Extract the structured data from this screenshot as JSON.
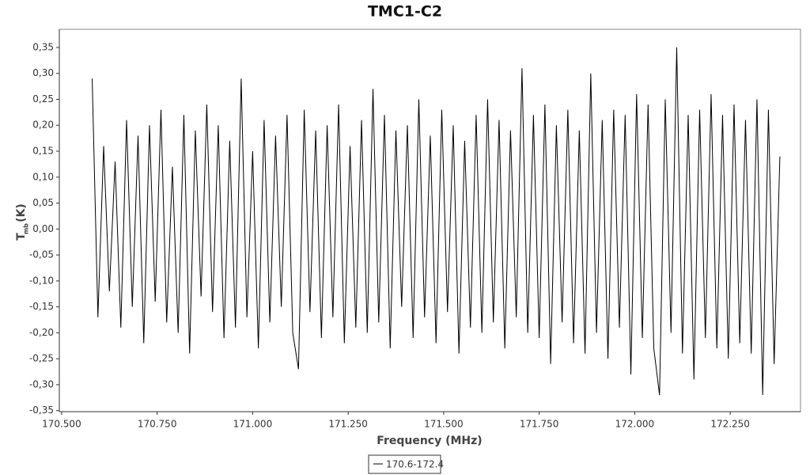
{
  "chart_data": {
    "type": "line",
    "title": "TMC1-C2",
    "xlabel": "Frequency (MHz)",
    "ylabel": {
      "main": "T",
      "sub": "mb",
      "unit": "(K)"
    },
    "x": [
      170.58,
      170.595,
      170.61,
      170.625,
      170.64,
      170.655,
      170.67,
      170.685,
      170.7,
      170.715,
      170.73,
      170.745,
      170.76,
      170.775,
      170.79,
      170.805,
      170.82,
      170.835,
      170.85,
      170.865,
      170.88,
      170.895,
      170.91,
      170.925,
      170.94,
      170.955,
      170.97,
      170.985,
      171,
      171.015,
      171.03,
      171.045,
      171.06,
      171.075,
      171.09,
      171.105,
      171.12,
      171.135,
      171.15,
      171.165,
      171.18,
      171.195,
      171.21,
      171.225,
      171.24,
      171.255,
      171.27,
      171.285,
      171.3,
      171.315,
      171.33,
      171.345,
      171.36,
      171.375,
      171.39,
      171.405,
      171.42,
      171.435,
      171.45,
      171.465,
      171.48,
      171.495,
      171.51,
      171.525,
      171.54,
      171.555,
      171.57,
      171.585,
      171.6,
      171.615,
      171.63,
      171.645,
      171.66,
      171.675,
      171.69,
      171.705,
      171.72,
      171.735,
      171.75,
      171.765,
      171.78,
      171.795,
      171.81,
      171.825,
      171.84,
      171.855,
      171.87,
      171.885,
      171.9,
      171.915,
      171.93,
      171.945,
      171.96,
      171.975,
      171.99,
      172.005,
      172.02,
      172.035,
      172.05,
      172.065,
      172.08,
      172.095,
      172.11,
      172.125,
      172.14,
      172.155,
      172.17,
      172.185,
      172.2,
      172.215,
      172.23,
      172.245,
      172.26,
      172.275,
      172.29,
      172.305,
      172.32,
      172.335,
      172.35,
      172.365,
      172.38
    ],
    "series": [
      {
        "name": "170.6-172.4",
        "color": "#000000",
        "values": [
          0.29,
          -0.17,
          0.16,
          -0.12,
          0.13,
          -0.19,
          0.21,
          -0.15,
          0.18,
          -0.22,
          0.2,
          -0.14,
          0.23,
          -0.18,
          0.12,
          -0.2,
          0.22,
          -0.24,
          0.19,
          -0.13,
          0.24,
          -0.16,
          0.2,
          -0.21,
          0.17,
          -0.19,
          0.29,
          -0.17,
          0.15,
          -0.23,
          0.21,
          -0.18,
          0.18,
          -0.15,
          0.22,
          -0.2,
          -0.27,
          0.23,
          -0.16,
          0.19,
          -0.21,
          0.2,
          -0.17,
          0.24,
          -0.22,
          0.16,
          -0.19,
          0.21,
          -0.2,
          0.27,
          -0.18,
          0.22,
          -0.23,
          0.19,
          -0.15,
          0.2,
          -0.21,
          0.25,
          -0.17,
          0.18,
          -0.22,
          0.23,
          -0.16,
          0.2,
          -0.24,
          0.17,
          -0.19,
          0.22,
          -0.2,
          0.25,
          -0.18,
          0.21,
          -0.23,
          0.19,
          -0.17,
          0.31,
          -0.2,
          0.22,
          -0.21,
          0.24,
          -0.26,
          0.2,
          -0.18,
          0.23,
          -0.22,
          0.19,
          -0.24,
          0.3,
          -0.2,
          0.21,
          -0.25,
          0.23,
          -0.19,
          0.22,
          -0.28,
          0.26,
          -0.21,
          0.24,
          -0.23,
          -0.32,
          0.25,
          -0.2,
          0.35,
          -0.24,
          0.22,
          -0.29,
          0.23,
          -0.21,
          0.26,
          -0.23,
          0.22,
          -0.25,
          0.24,
          -0.22,
          0.21,
          -0.24,
          0.25,
          -0.32,
          0.23,
          -0.26,
          0.14
        ]
      }
    ],
    "xlim": [
      170.494,
      172.434
    ],
    "ylim": [
      -0.352,
      0.385
    ],
    "xticks": [
      {
        "value": 170.5,
        "label": "170.500"
      },
      {
        "value": 170.75,
        "label": "170.750"
      },
      {
        "value": 171,
        "label": "171.000"
      },
      {
        "value": 171.25,
        "label": "171.250"
      },
      {
        "value": 171.5,
        "label": "171.500"
      },
      {
        "value": 171.75,
        "label": "171.750"
      },
      {
        "value": 172,
        "label": "172.000"
      },
      {
        "value": 172.25,
        "label": "172.250"
      }
    ],
    "yticks": [
      {
        "value": 0.35,
        "label": "0,35"
      },
      {
        "value": 0.3,
        "label": "0,30"
      },
      {
        "value": 0.25,
        "label": "0,25"
      },
      {
        "value": 0.2,
        "label": "0,20"
      },
      {
        "value": 0.15,
        "label": "0,15"
      },
      {
        "value": 0.1,
        "label": "0,10"
      },
      {
        "value": 0.05,
        "label": "0,05"
      },
      {
        "value": 0,
        "label": "0,00"
      },
      {
        "value": -0.05,
        "label": "-0,05"
      },
      {
        "value": -0.1,
        "label": "-0,10"
      },
      {
        "value": -0.15,
        "label": "-0,15"
      },
      {
        "value": -0.2,
        "label": "-0,20"
      },
      {
        "value": -0.25,
        "label": "-0,25"
      },
      {
        "value": -0.3,
        "label": "-0,30"
      },
      {
        "value": -0.35,
        "label": "-0,35"
      }
    ],
    "grid": false
  }
}
